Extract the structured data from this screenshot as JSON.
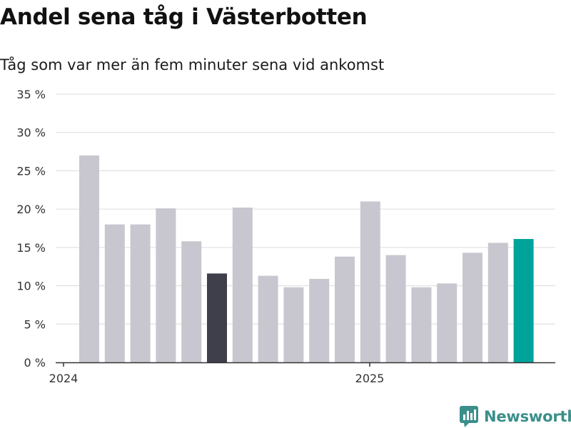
{
  "chart_data": {
    "type": "bar",
    "title": "Andel sena tåg i Västerbotten",
    "subtitle": "Tåg som var mer än fem minuter sena vid ankomst",
    "xlabel": "",
    "ylabel": "",
    "x_tick_labels": [
      "2024",
      "2025"
    ],
    "categories": [
      "2024-01",
      "2024-02",
      "2024-03",
      "2024-04",
      "2024-05",
      "2024-06",
      "2024-07",
      "2024-08",
      "2024-09",
      "2024-10",
      "2024-11",
      "2024-12",
      "2025-01",
      "2025-02",
      "2025-03",
      "2025-04",
      "2025-05",
      "2025-06"
    ],
    "values": [
      27.0,
      18.0,
      18.0,
      20.1,
      15.8,
      11.6,
      20.2,
      11.3,
      9.8,
      10.9,
      13.8,
      21.0,
      14.0,
      9.8,
      10.3,
      14.3,
      15.6,
      16.1
    ],
    "y_ticks": [
      0,
      5,
      10,
      15,
      20,
      25,
      30,
      35
    ],
    "y_tick_suffix": " %",
    "ylim": [
      0,
      35
    ],
    "grid": true,
    "legend": "none",
    "colors": {
      "default_bar": "#c8c7d0",
      "highlight_bar": "#3f3e4b",
      "latest_bar": "#00a39a",
      "gridline": "#dcdcdc",
      "axis": "#333333"
    },
    "highlight_index": 5,
    "latest_index": 17
  },
  "brand": {
    "name": "Newsworthy",
    "icon": "newsworthy-logo-icon"
  }
}
